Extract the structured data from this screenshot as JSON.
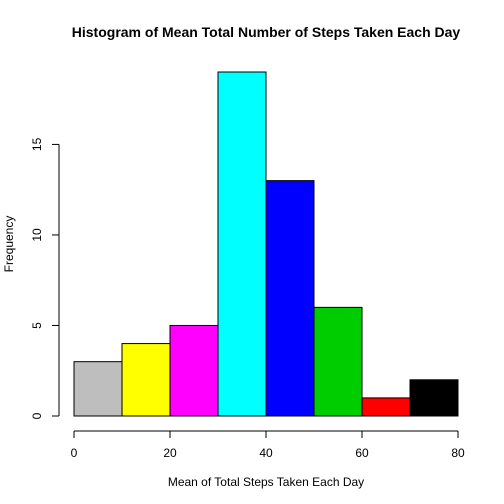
{
  "chart_data": {
    "type": "bar",
    "subtype": "histogram",
    "title": "Histogram of Mean Total Number of Steps Taken Each Day",
    "xlabel": "Mean of Total Steps Taken Each Day",
    "ylabel": "Frequency",
    "xlim": [
      0,
      80
    ],
    "ylim": [
      0,
      19
    ],
    "x_ticks": [
      0,
      20,
      40,
      60,
      80
    ],
    "y_ticks": [
      0,
      5,
      10,
      15
    ],
    "grid": false,
    "bins": [
      {
        "start": 0,
        "end": 10,
        "value": 3,
        "color": "#bebebe"
      },
      {
        "start": 10,
        "end": 20,
        "value": 4,
        "color": "#ffff00"
      },
      {
        "start": 20,
        "end": 30,
        "value": 5,
        "color": "#ff00ff"
      },
      {
        "start": 30,
        "end": 40,
        "value": 19,
        "color": "#00ffff"
      },
      {
        "start": 40,
        "end": 50,
        "value": 13,
        "color": "#0000ff"
      },
      {
        "start": 50,
        "end": 60,
        "value": 6,
        "color": "#00cd00"
      },
      {
        "start": 60,
        "end": 70,
        "value": 1,
        "color": "#ff0000"
      },
      {
        "start": 70,
        "end": 80,
        "value": 2,
        "color": "#000000"
      }
    ]
  }
}
